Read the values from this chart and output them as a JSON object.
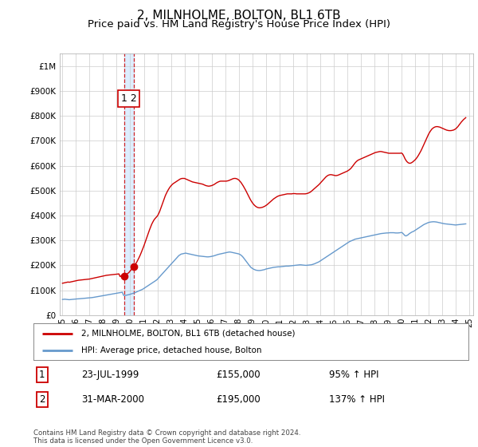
{
  "title": "2, MILNHOLME, BOLTON, BL1 6TB",
  "subtitle": "Price paid vs. HM Land Registry's House Price Index (HPI)",
  "title_fontsize": 11,
  "subtitle_fontsize": 9.5,
  "ytick_values": [
    0,
    100000,
    200000,
    300000,
    400000,
    500000,
    600000,
    700000,
    800000,
    900000,
    1000000
  ],
  "ylim": [
    0,
    1050000
  ],
  "xlim_start": 1994.8,
  "xlim_end": 2025.3,
  "background_color": "#ffffff",
  "grid_color": "#cccccc",
  "legend_label_red": "2, MILNHOLME, BOLTON, BL1 6TB (detached house)",
  "legend_label_blue": "HPI: Average price, detached house, Bolton",
  "red_line_color": "#cc0000",
  "blue_line_color": "#6699cc",
  "shade_color": "#ddeeff",
  "sale1_date": 1999.55,
  "sale1_price": 155000,
  "sale1_display": "23-JUL-1999",
  "sale1_amount": "£155,000",
  "sale1_hpi": "95% ↑ HPI",
  "sale2_date": 2000.25,
  "sale2_price": 195000,
  "sale2_display": "31-MAR-2000",
  "sale2_amount": "£195,000",
  "sale2_hpi": "137% ↑ HPI",
  "footnote": "Contains HM Land Registry data © Crown copyright and database right 2024.\nThis data is licensed under the Open Government Licence v3.0.",
  "hpi_data_x": [
    1995.0,
    1995.083,
    1995.167,
    1995.25,
    1995.333,
    1995.417,
    1995.5,
    1995.583,
    1995.667,
    1995.75,
    1995.833,
    1995.917,
    1996.0,
    1996.083,
    1996.167,
    1996.25,
    1996.333,
    1996.417,
    1996.5,
    1996.583,
    1996.667,
    1996.75,
    1996.833,
    1996.917,
    1997.0,
    1997.083,
    1997.167,
    1997.25,
    1997.333,
    1997.417,
    1997.5,
    1997.583,
    1997.667,
    1997.75,
    1997.833,
    1997.917,
    1998.0,
    1998.083,
    1998.167,
    1998.25,
    1998.333,
    1998.417,
    1998.5,
    1998.583,
    1998.667,
    1998.75,
    1998.833,
    1998.917,
    1999.0,
    1999.083,
    1999.167,
    1999.25,
    1999.333,
    1999.417,
    1999.5,
    1999.583,
    1999.667,
    1999.75,
    1999.833,
    1999.917,
    2000.0,
    2000.083,
    2000.167,
    2000.25,
    2000.333,
    2000.417,
    2000.5,
    2000.583,
    2000.667,
    2000.75,
    2000.833,
    2000.917,
    2001.0,
    2001.083,
    2001.167,
    2001.25,
    2001.333,
    2001.417,
    2001.5,
    2001.583,
    2001.667,
    2001.75,
    2001.833,
    2001.917,
    2002.0,
    2002.083,
    2002.167,
    2002.25,
    2002.333,
    2002.417,
    2002.5,
    2002.583,
    2002.667,
    2002.75,
    2002.833,
    2002.917,
    2003.0,
    2003.083,
    2003.167,
    2003.25,
    2003.333,
    2003.417,
    2003.5,
    2003.583,
    2003.667,
    2003.75,
    2003.833,
    2003.917,
    2004.0,
    2004.083,
    2004.167,
    2004.25,
    2004.333,
    2004.417,
    2004.5,
    2004.583,
    2004.667,
    2004.75,
    2004.833,
    2004.917,
    2005.0,
    2005.083,
    2005.167,
    2005.25,
    2005.333,
    2005.417,
    2005.5,
    2005.583,
    2005.667,
    2005.75,
    2005.833,
    2005.917,
    2006.0,
    2006.083,
    2006.167,
    2006.25,
    2006.333,
    2006.417,
    2006.5,
    2006.583,
    2006.667,
    2006.75,
    2006.833,
    2006.917,
    2007.0,
    2007.083,
    2007.167,
    2007.25,
    2007.333,
    2007.417,
    2007.5,
    2007.583,
    2007.667,
    2007.75,
    2007.833,
    2007.917,
    2008.0,
    2008.083,
    2008.167,
    2008.25,
    2008.333,
    2008.417,
    2008.5,
    2008.583,
    2008.667,
    2008.75,
    2008.833,
    2008.917,
    2009.0,
    2009.083,
    2009.167,
    2009.25,
    2009.333,
    2009.417,
    2009.5,
    2009.583,
    2009.667,
    2009.75,
    2009.833,
    2009.917,
    2010.0,
    2010.083,
    2010.167,
    2010.25,
    2010.333,
    2010.417,
    2010.5,
    2010.583,
    2010.667,
    2010.75,
    2010.833,
    2010.917,
    2011.0,
    2011.083,
    2011.167,
    2011.25,
    2011.333,
    2011.417,
    2011.5,
    2011.583,
    2011.667,
    2011.75,
    2011.833,
    2011.917,
    2012.0,
    2012.083,
    2012.167,
    2012.25,
    2012.333,
    2012.417,
    2012.5,
    2012.583,
    2012.667,
    2012.75,
    2012.833,
    2012.917,
    2013.0,
    2013.083,
    2013.167,
    2013.25,
    2013.333,
    2013.417,
    2013.5,
    2013.583,
    2013.667,
    2013.75,
    2013.833,
    2013.917,
    2014.0,
    2014.083,
    2014.167,
    2014.25,
    2014.333,
    2014.417,
    2014.5,
    2014.583,
    2014.667,
    2014.75,
    2014.833,
    2014.917,
    2015.0,
    2015.083,
    2015.167,
    2015.25,
    2015.333,
    2015.417,
    2015.5,
    2015.583,
    2015.667,
    2015.75,
    2015.833,
    2015.917,
    2016.0,
    2016.083,
    2016.167,
    2016.25,
    2016.333,
    2016.417,
    2016.5,
    2016.583,
    2016.667,
    2016.75,
    2016.833,
    2016.917,
    2017.0,
    2017.083,
    2017.167,
    2017.25,
    2017.333,
    2017.417,
    2017.5,
    2017.583,
    2017.667,
    2017.75,
    2017.833,
    2017.917,
    2018.0,
    2018.083,
    2018.167,
    2018.25,
    2018.333,
    2018.417,
    2018.5,
    2018.583,
    2018.667,
    2018.75,
    2018.833,
    2018.917,
    2019.0,
    2019.083,
    2019.167,
    2019.25,
    2019.333,
    2019.417,
    2019.5,
    2019.583,
    2019.667,
    2019.75,
    2019.833,
    2019.917,
    2020.0,
    2020.083,
    2020.167,
    2020.25,
    2020.333,
    2020.417,
    2020.5,
    2020.583,
    2020.667,
    2020.75,
    2020.833,
    2020.917,
    2021.0,
    2021.083,
    2021.167,
    2021.25,
    2021.333,
    2021.417,
    2021.5,
    2021.583,
    2021.667,
    2021.75,
    2021.833,
    2021.917,
    2022.0,
    2022.083,
    2022.167,
    2022.25,
    2022.333,
    2022.417,
    2022.5,
    2022.583,
    2022.667,
    2022.75,
    2022.833,
    2022.917,
    2023.0,
    2023.083,
    2023.167,
    2023.25,
    2023.333,
    2023.417,
    2023.5,
    2023.583,
    2023.667,
    2023.75,
    2023.833,
    2023.917,
    2024.0,
    2024.083,
    2024.167,
    2024.25,
    2024.333,
    2024.417,
    2024.5,
    2024.583,
    2024.667,
    2024.75
  ],
  "hpi_data_y": [
    63000,
    63500,
    64000,
    63500,
    63000,
    62500,
    62000,
    62500,
    63000,
    63500,
    64000,
    64500,
    65000,
    65200,
    65400,
    65800,
    66200,
    66600,
    67000,
    67300,
    67600,
    68000,
    68400,
    68800,
    69200,
    69800,
    70400,
    71000,
    71800,
    72600,
    73400,
    74200,
    75000,
    75800,
    76600,
    77400,
    78000,
    78800,
    79600,
    80400,
    81200,
    82000,
    82800,
    83600,
    84400,
    85200,
    86000,
    86800,
    87600,
    88400,
    89200,
    90000,
    91000,
    92000,
    80000,
    79000,
    79500,
    80500,
    81500,
    82500,
    84000,
    85500,
    87000,
    88500,
    90000,
    92000,
    94000,
    96000,
    98000,
    100000,
    102000,
    104000,
    107000,
    110000,
    113000,
    116000,
    119000,
    122000,
    125000,
    128000,
    131000,
    134000,
    137000,
    140000,
    144000,
    149000,
    154000,
    159000,
    164000,
    169000,
    174000,
    179000,
    184000,
    189000,
    194000,
    199000,
    204000,
    209000,
    214000,
    219000,
    224000,
    229000,
    234000,
    239000,
    242000,
    245000,
    246000,
    247000,
    248000,
    249000,
    248000,
    247000,
    246000,
    245000,
    244000,
    243000,
    242000,
    241000,
    240000,
    239000,
    238000,
    237500,
    237000,
    236500,
    236000,
    235500,
    235000,
    234500,
    234000,
    234000,
    234500,
    235000,
    236000,
    237000,
    238000,
    239500,
    241000,
    242500,
    244000,
    245000,
    246000,
    247000,
    248000,
    249000,
    250000,
    251000,
    252000,
    253000,
    253500,
    253000,
    252000,
    251000,
    250000,
    249000,
    248000,
    247000,
    246000,
    244000,
    241000,
    237000,
    232000,
    226000,
    220000,
    214000,
    208000,
    202000,
    196000,
    191000,
    188000,
    185000,
    183000,
    181000,
    180000,
    179500,
    179000,
    179500,
    180000,
    181000,
    182000,
    183000,
    185000,
    186000,
    187000,
    188000,
    189000,
    190000,
    191000,
    192000,
    192500,
    193000,
    193500,
    194000,
    194000,
    194500,
    195000,
    195500,
    196000,
    196500,
    197000,
    197000,
    197000,
    197500,
    198000,
    198500,
    199000,
    199500,
    200000,
    200500,
    201000,
    201500,
    202000,
    202000,
    201500,
    201000,
    200500,
    200000,
    200000,
    200500,
    201000,
    201500,
    202000,
    203000,
    204500,
    206000,
    208000,
    210000,
    212000,
    214000,
    217000,
    220000,
    223000,
    226000,
    229000,
    232000,
    235000,
    238000,
    241000,
    244000,
    247000,
    250000,
    253000,
    256000,
    259000,
    262000,
    265000,
    268000,
    271000,
    274000,
    277000,
    280000,
    283000,
    286000,
    289000,
    292000,
    295000,
    297000,
    299000,
    301000,
    303000,
    305000,
    306000,
    307000,
    308000,
    309000,
    310000,
    311000,
    312000,
    313000,
    314000,
    315000,
    316000,
    317000,
    318000,
    319000,
    320000,
    321000,
    322000,
    323000,
    324000,
    325000,
    326000,
    327000,
    327500,
    328000,
    328500,
    329000,
    329500,
    330000,
    330000,
    330500,
    331000,
    331000,
    331000,
    331000,
    330500,
    330000,
    330000,
    330000,
    330500,
    331000,
    332000,
    330000,
    325000,
    320000,
    318000,
    320000,
    323000,
    327000,
    330000,
    333000,
    335000,
    337000,
    340000,
    343000,
    346000,
    349000,
    352000,
    355000,
    358000,
    361000,
    364000,
    366000,
    368000,
    370000,
    372000,
    373000,
    374000,
    374500,
    375000,
    375000,
    374500,
    374000,
    373000,
    372000,
    371000,
    370000,
    369000,
    368000,
    367000,
    366500,
    366000,
    365500,
    365000,
    364500,
    364000,
    363500,
    363000,
    362500,
    362000,
    362500,
    363000,
    363500,
    364000,
    364500,
    365000,
    365500,
    366000,
    366500
  ],
  "red_data_x": [
    1995.0,
    1995.083,
    1995.167,
    1995.25,
    1995.333,
    1995.417,
    1995.5,
    1995.583,
    1995.667,
    1995.75,
    1995.833,
    1995.917,
    1996.0,
    1996.083,
    1996.167,
    1996.25,
    1996.333,
    1996.417,
    1996.5,
    1996.583,
    1996.667,
    1996.75,
    1996.833,
    1996.917,
    1997.0,
    1997.083,
    1997.167,
    1997.25,
    1997.333,
    1997.417,
    1997.5,
    1997.583,
    1997.667,
    1997.75,
    1997.833,
    1997.917,
    1998.0,
    1998.083,
    1998.167,
    1998.25,
    1998.333,
    1998.417,
    1998.5,
    1998.583,
    1998.667,
    1998.75,
    1998.833,
    1998.917,
    1999.0,
    1999.083,
    1999.167,
    1999.25,
    1999.333,
    1999.417,
    1999.5,
    1999.583,
    1999.667,
    1999.75,
    1999.833,
    1999.917,
    2000.0,
    2000.083,
    2000.167,
    2000.25,
    2000.333,
    2000.417,
    2000.5,
    2000.583,
    2000.667,
    2000.75,
    2000.833,
    2000.917,
    2001.0,
    2001.083,
    2001.167,
    2001.25,
    2001.333,
    2001.417,
    2001.5,
    2001.583,
    2001.667,
    2001.75,
    2001.833,
    2001.917,
    2002.0,
    2002.083,
    2002.167,
    2002.25,
    2002.333,
    2002.417,
    2002.5,
    2002.583,
    2002.667,
    2002.75,
    2002.833,
    2002.917,
    2003.0,
    2003.083,
    2003.167,
    2003.25,
    2003.333,
    2003.417,
    2003.5,
    2003.583,
    2003.667,
    2003.75,
    2003.833,
    2003.917,
    2004.0,
    2004.083,
    2004.167,
    2004.25,
    2004.333,
    2004.417,
    2004.5,
    2004.583,
    2004.667,
    2004.75,
    2004.833,
    2004.917,
    2005.0,
    2005.083,
    2005.167,
    2005.25,
    2005.333,
    2005.417,
    2005.5,
    2005.583,
    2005.667,
    2005.75,
    2005.833,
    2005.917,
    2006.0,
    2006.083,
    2006.167,
    2006.25,
    2006.333,
    2006.417,
    2006.5,
    2006.583,
    2006.667,
    2006.75,
    2006.833,
    2006.917,
    2007.0,
    2007.083,
    2007.167,
    2007.25,
    2007.333,
    2007.417,
    2007.5,
    2007.583,
    2007.667,
    2007.75,
    2007.833,
    2007.917,
    2008.0,
    2008.083,
    2008.167,
    2008.25,
    2008.333,
    2008.417,
    2008.5,
    2008.583,
    2008.667,
    2008.75,
    2008.833,
    2008.917,
    2009.0,
    2009.083,
    2009.167,
    2009.25,
    2009.333,
    2009.417,
    2009.5,
    2009.583,
    2009.667,
    2009.75,
    2009.833,
    2009.917,
    2010.0,
    2010.083,
    2010.167,
    2010.25,
    2010.333,
    2010.417,
    2010.5,
    2010.583,
    2010.667,
    2010.75,
    2010.833,
    2010.917,
    2011.0,
    2011.083,
    2011.167,
    2011.25,
    2011.333,
    2011.417,
    2011.5,
    2011.583,
    2011.667,
    2011.75,
    2011.833,
    2011.917,
    2012.0,
    2012.083,
    2012.167,
    2012.25,
    2012.333,
    2012.417,
    2012.5,
    2012.583,
    2012.667,
    2012.75,
    2012.833,
    2012.917,
    2013.0,
    2013.083,
    2013.167,
    2013.25,
    2013.333,
    2013.417,
    2013.5,
    2013.583,
    2013.667,
    2013.75,
    2013.833,
    2013.917,
    2014.0,
    2014.083,
    2014.167,
    2014.25,
    2014.333,
    2014.417,
    2014.5,
    2014.583,
    2014.667,
    2014.75,
    2014.833,
    2014.917,
    2015.0,
    2015.083,
    2015.167,
    2015.25,
    2015.333,
    2015.417,
    2015.5,
    2015.583,
    2015.667,
    2015.75,
    2015.833,
    2015.917,
    2016.0,
    2016.083,
    2016.167,
    2016.25,
    2016.333,
    2016.417,
    2016.5,
    2016.583,
    2016.667,
    2016.75,
    2016.833,
    2016.917,
    2017.0,
    2017.083,
    2017.167,
    2017.25,
    2017.333,
    2017.417,
    2017.5,
    2017.583,
    2017.667,
    2017.75,
    2017.833,
    2017.917,
    2018.0,
    2018.083,
    2018.167,
    2018.25,
    2018.333,
    2018.417,
    2018.5,
    2018.583,
    2018.667,
    2018.75,
    2018.833,
    2018.917,
    2019.0,
    2019.083,
    2019.167,
    2019.25,
    2019.333,
    2019.417,
    2019.5,
    2019.583,
    2019.667,
    2019.75,
    2019.833,
    2019.917,
    2020.0,
    2020.083,
    2020.167,
    2020.25,
    2020.333,
    2020.417,
    2020.5,
    2020.583,
    2020.667,
    2020.75,
    2020.833,
    2020.917,
    2021.0,
    2021.083,
    2021.167,
    2021.25,
    2021.333,
    2021.417,
    2021.5,
    2021.583,
    2021.667,
    2021.75,
    2021.833,
    2021.917,
    2022.0,
    2022.083,
    2022.167,
    2022.25,
    2022.333,
    2022.417,
    2022.5,
    2022.583,
    2022.667,
    2022.75,
    2022.833,
    2022.917,
    2023.0,
    2023.083,
    2023.167,
    2023.25,
    2023.333,
    2023.417,
    2023.5,
    2023.583,
    2023.667,
    2023.75,
    2023.833,
    2023.917,
    2024.0,
    2024.083,
    2024.167,
    2024.25,
    2024.333,
    2024.417,
    2024.5,
    2024.583,
    2024.667,
    2024.75
  ],
  "red_data_y": [
    128000,
    129000,
    130000,
    131000,
    132000,
    133000,
    132000,
    133000,
    134000,
    135000,
    136000,
    137000,
    138000,
    139000,
    140000,
    140500,
    141000,
    141500,
    142000,
    142500,
    143000,
    143500,
    144000,
    144500,
    145000,
    146000,
    147000,
    148000,
    149000,
    150000,
    151000,
    152000,
    153000,
    154000,
    155000,
    156000,
    157000,
    158000,
    159000,
    160000,
    160500,
    161000,
    161500,
    162000,
    162500,
    163000,
    163500,
    164000,
    164500,
    165000,
    165500,
    155000,
    158000,
    160000,
    155000,
    157000,
    160000,
    165000,
    168000,
    172000,
    178000,
    183000,
    188000,
    195000,
    200000,
    207000,
    215000,
    224000,
    233000,
    243000,
    254000,
    265000,
    277000,
    290000,
    303000,
    317000,
    330000,
    342000,
    354000,
    365000,
    374000,
    382000,
    388000,
    393000,
    398000,
    406000,
    416000,
    428000,
    441000,
    454000,
    467000,
    479000,
    489000,
    498000,
    506000,
    513000,
    519000,
    524000,
    528000,
    531000,
    534000,
    537000,
    540000,
    543000,
    546000,
    548000,
    549000,
    549000,
    549000,
    547000,
    545000,
    543000,
    541000,
    539000,
    537000,
    535000,
    534000,
    533000,
    532000,
    531000,
    530000,
    529000,
    528000,
    527000,
    526000,
    524000,
    522000,
    520000,
    519000,
    518000,
    518000,
    519000,
    520000,
    522000,
    524000,
    527000,
    530000,
    533000,
    535000,
    537000,
    538000,
    538000,
    538000,
    538000,
    538000,
    538000,
    539000,
    540000,
    542000,
    544000,
    546000,
    548000,
    549000,
    549000,
    548000,
    546000,
    543000,
    538000,
    533000,
    526000,
    519000,
    511000,
    503000,
    494000,
    485000,
    476000,
    467000,
    459000,
    452000,
    446000,
    441000,
    437000,
    434000,
    432000,
    431000,
    431000,
    432000,
    433000,
    435000,
    437000,
    440000,
    443000,
    447000,
    451000,
    455000,
    459000,
    463000,
    467000,
    470000,
    473000,
    476000,
    478000,
    480000,
    481000,
    482000,
    483000,
    484000,
    485000,
    486000,
    487000,
    487000,
    487000,
    487000,
    487000,
    488000,
    488000,
    488000,
    487000,
    487000,
    487000,
    487000,
    487000,
    487000,
    487000,
    487000,
    487000,
    488000,
    489000,
    491000,
    493000,
    496000,
    500000,
    504000,
    508000,
    512000,
    516000,
    520000,
    524000,
    529000,
    534000,
    539000,
    544000,
    549000,
    554000,
    558000,
    561000,
    563000,
    564000,
    564000,
    563000,
    562000,
    561000,
    560000,
    561000,
    562000,
    564000,
    566000,
    568000,
    570000,
    572000,
    574000,
    576000,
    578000,
    581000,
    584000,
    588000,
    593000,
    599000,
    605000,
    611000,
    616000,
    620000,
    623000,
    625000,
    627000,
    629000,
    631000,
    633000,
    635000,
    637000,
    639000,
    641000,
    643000,
    645000,
    647000,
    649000,
    651000,
    653000,
    654000,
    655000,
    656000,
    657000,
    657000,
    656000,
    655000,
    654000,
    653000,
    652000,
    651000,
    650000,
    650000,
    650000,
    650000,
    650000,
    650000,
    650000,
    650000,
    650000,
    650000,
    650000,
    651000,
    648000,
    640000,
    630000,
    622000,
    616000,
    612000,
    610000,
    610000,
    612000,
    615000,
    619000,
    623000,
    628000,
    634000,
    641000,
    649000,
    657000,
    666000,
    676000,
    686000,
    696000,
    706000,
    716000,
    726000,
    734000,
    741000,
    747000,
    751000,
    754000,
    756000,
    757000,
    757000,
    756000,
    755000,
    753000,
    751000,
    749000,
    747000,
    745000,
    743000,
    742000,
    741000,
    741000,
    741000,
    742000,
    743000,
    745000,
    748000,
    752000,
    757000,
    763000,
    769000,
    775000,
    780000,
    785000,
    789000,
    793000
  ]
}
